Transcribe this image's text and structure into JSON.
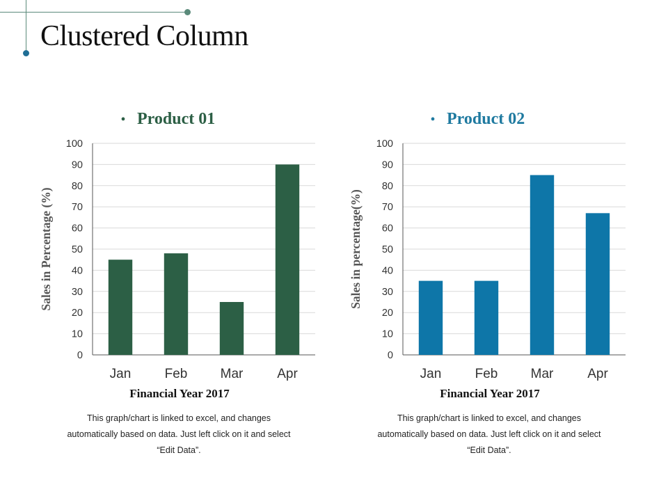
{
  "page": {
    "title": "Clustered Column",
    "colors": {
      "accent_line": "#5a8a7a",
      "accent_dot": "#1f6e95"
    }
  },
  "chart_data": [
    {
      "type": "bar",
      "title": "Product 01",
      "title_color": "#2c5f45",
      "bar_color": "#2c5f45",
      "categories": [
        "Jan",
        "Feb",
        "Mar",
        "Apr"
      ],
      "values": [
        45,
        48,
        25,
        90
      ],
      "ylim": [
        0,
        100
      ],
      "yticks": [
        0,
        10,
        20,
        30,
        40,
        50,
        60,
        70,
        80,
        90,
        100
      ],
      "ylabel": "Sales in Percentage (%)",
      "xlabel": "Financial Year 2017",
      "grid": true,
      "caption": [
        "This graph/chart is linked to excel, and changes",
        "automatically based on data. Just left click on it and select",
        "“Edit Data”."
      ]
    },
    {
      "type": "bar",
      "title": "Product 02",
      "title_color": "#1f7aa0",
      "bar_color": "#0e76a8",
      "categories": [
        "Jan",
        "Feb",
        "Mar",
        "Apr"
      ],
      "values": [
        35,
        35,
        85,
        67
      ],
      "ylim": [
        0,
        100
      ],
      "yticks": [
        0,
        10,
        20,
        30,
        40,
        50,
        60,
        70,
        80,
        90,
        100
      ],
      "ylabel": "Sales in percentage(%)",
      "xlabel": "Financial Year 2017",
      "grid": true,
      "caption": [
        "This graph/chart is linked to excel, and changes",
        "automatically based on data. Just left click on it and select",
        "“Edit Data”."
      ]
    }
  ]
}
